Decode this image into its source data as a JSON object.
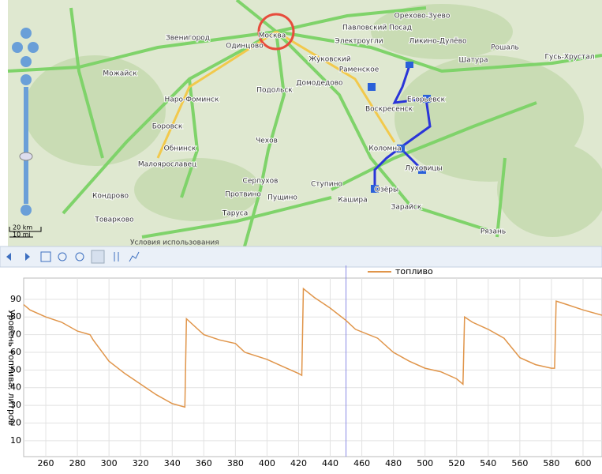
{
  "map": {
    "labels": [
      "Орехово-Зуево",
      "Павловский Посад",
      "Электроугли",
      "Ликино-Дулёво",
      "Шатура",
      "Рошаль",
      "Гусь-Хрустал",
      "Звенигород",
      "Одинцово",
      "Можайск",
      "Наро-Фоминск",
      "Подольск",
      "Домодедово",
      "Раменское",
      "Жуковский",
      "Воскресенск",
      "Егорьевск",
      "Обнинск",
      "Боровск",
      "Малоярославец",
      "Чехов",
      "Серпухов",
      "Протвино",
      "Пущино",
      "Ступино",
      "Кашира",
      "Озёры",
      "Зарайск",
      "Луховицы",
      "Коломна",
      "Кондрово",
      "Таруса",
      "Товарково",
      "Рязань",
      "Москва"
    ],
    "scale_km": "20 km",
    "scale_mi": "10 mi",
    "terms": "Условия использования"
  },
  "chart_data": {
    "type": "line",
    "y_label": "Уровень топлива, литров",
    "series": [
      {
        "name": "топливо",
        "color": "#e0954a",
        "x": [
          246,
          250,
          260,
          270,
          280,
          288,
          290,
          300,
          310,
          320,
          330,
          340,
          348,
          349,
          360,
          370,
          380,
          386,
          400,
          410,
          420,
          422,
          423,
          430,
          440,
          450,
          456,
          470,
          480,
          490,
          500,
          510,
          520,
          524,
          525,
          530,
          540,
          550,
          560,
          570,
          580,
          582,
          583,
          590,
          600,
          612
        ],
        "values": [
          87,
          84,
          80,
          77,
          72,
          70,
          67,
          55,
          48,
          42,
          36,
          31,
          29,
          79,
          70,
          67,
          65,
          60,
          56,
          52,
          48,
          47,
          96,
          91,
          85,
          78,
          73,
          68,
          60,
          55,
          51,
          49,
          45,
          42,
          80,
          77,
          73,
          68,
          57,
          53,
          51,
          51,
          89,
          87,
          84,
          81
        ]
      }
    ],
    "cursor_x": 450,
    "xlim": [
      246,
      612
    ],
    "ylim": [
      1,
      102
    ],
    "xticks": [
      260,
      280,
      300,
      320,
      340,
      360,
      380,
      400,
      420,
      440,
      460,
      480,
      500,
      520,
      540,
      560,
      580,
      600
    ],
    "yticks": [
      10,
      20,
      30,
      40,
      50,
      60,
      70,
      80,
      90
    ],
    "grid": true
  }
}
